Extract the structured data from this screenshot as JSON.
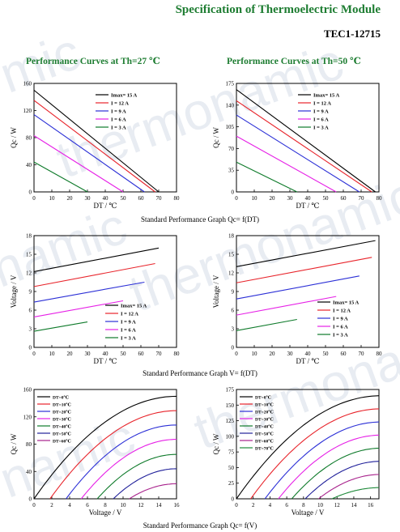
{
  "header": {
    "title": "Specification of Thermoelectric Module",
    "model": "TEC1-12715"
  },
  "section_titles": {
    "left": "Performance Curves at Th=27 ℃",
    "right": "Performance Curves at Th=50 ℃"
  },
  "captions": {
    "qc_dt": "Standard Performance Graph Qc= f(DT)",
    "v_dt": "Standard Performance Graph V= f(DT)",
    "qc_v": "Standard Performance Graph Qc= f(V)"
  },
  "watermark": [
    "mic",
    "thermonamic",
    "namic",
    "thermonamic",
    "thermonamic",
    "namic"
  ],
  "chart_data": [
    {
      "id": "qc_dt_27",
      "type": "line",
      "xlabel": "DT / ℃",
      "ylabel": "Qc / W",
      "xlim": [
        0,
        80
      ],
      "ylim": [
        0,
        160
      ],
      "xticks": [
        0,
        10,
        20,
        30,
        40,
        50,
        60,
        70,
        80
      ],
      "yticks": [
        0,
        40,
        80,
        120,
        160
      ],
      "legend_position": "top-right",
      "series": [
        {
          "name": "Imax= 15 A",
          "color": "#000000",
          "x": [
            0,
            70
          ],
          "y": [
            150,
            0
          ]
        },
        {
          "name": "I = 12 A",
          "color": "#e8232a",
          "x": [
            0,
            68
          ],
          "y": [
            135,
            0
          ]
        },
        {
          "name": "I = 9 A",
          "color": "#2b2fd6",
          "x": [
            0,
            62
          ],
          "y": [
            114,
            0
          ]
        },
        {
          "name": "I = 6 A",
          "color": "#e620e6",
          "x": [
            0,
            50
          ],
          "y": [
            83,
            0
          ]
        },
        {
          "name": "I = 3 A",
          "color": "#0e7a2a",
          "x": [
            0,
            30
          ],
          "y": [
            44,
            0
          ]
        }
      ]
    },
    {
      "id": "qc_dt_50",
      "type": "line",
      "xlabel": "DT / ℃",
      "ylabel": "Qc / W",
      "xlim": [
        0,
        80
      ],
      "ylim": [
        0,
        175
      ],
      "xticks": [
        0,
        10,
        20,
        30,
        40,
        50,
        60,
        70,
        80
      ],
      "yticks": [
        0,
        35,
        70,
        105,
        140,
        175
      ],
      "legend_position": "top-right",
      "series": [
        {
          "name": "Imax= 15 A",
          "color": "#000000",
          "x": [
            0,
            78
          ],
          "y": [
            165,
            0
          ]
        },
        {
          "name": "I = 12 A",
          "color": "#e8232a",
          "x": [
            0,
            76
          ],
          "y": [
            147,
            0
          ]
        },
        {
          "name": "I = 9 A",
          "color": "#2b2fd6",
          "x": [
            0,
            69
          ],
          "y": [
            124,
            0
          ]
        },
        {
          "name": "I = 6 A",
          "color": "#e620e6",
          "x": [
            0,
            56
          ],
          "y": [
            90,
            0
          ]
        },
        {
          "name": "I = 3 A",
          "color": "#0e7a2a",
          "x": [
            0,
            34
          ],
          "y": [
            48,
            0
          ]
        }
      ]
    },
    {
      "id": "v_dt_27",
      "type": "line",
      "xlabel": "DT / ℃",
      "ylabel": "Voltage / V",
      "xlim": [
        0,
        80
      ],
      "ylim": [
        0,
        18
      ],
      "xticks": [
        0,
        10,
        20,
        30,
        40,
        50,
        60,
        70,
        80
      ],
      "yticks": [
        0,
        3,
        6,
        9,
        12,
        15,
        18
      ],
      "legend_position": "lower-center",
      "series": [
        {
          "name": "Imax= 15 A",
          "color": "#000000",
          "x": [
            0,
            70
          ],
          "y": [
            12.2,
            16.0
          ]
        },
        {
          "name": "I = 12 A",
          "color": "#e8232a",
          "x": [
            0,
            68
          ],
          "y": [
            9.8,
            13.5
          ]
        },
        {
          "name": "I = 9 A",
          "color": "#2b2fd6",
          "x": [
            0,
            62
          ],
          "y": [
            7.3,
            10.5
          ]
        },
        {
          "name": "I = 6 A",
          "color": "#e620e6",
          "x": [
            0,
            50
          ],
          "y": [
            4.9,
            7.5
          ]
        },
        {
          "name": "I = 3 A",
          "color": "#0e7a2a",
          "x": [
            0,
            30
          ],
          "y": [
            2.6,
            4.1
          ]
        }
      ]
    },
    {
      "id": "v_dt_50",
      "type": "line",
      "xlabel": "DT / ℃",
      "ylabel": "Voltage / V",
      "xlim": [
        0,
        80
      ],
      "ylim": [
        0,
        18
      ],
      "xticks": [
        0,
        10,
        20,
        30,
        40,
        50,
        60,
        70,
        80
      ],
      "yticks": [
        0,
        3,
        6,
        9,
        12,
        15,
        18
      ],
      "legend_position": "lower-right",
      "series": [
        {
          "name": "Imax= 15 A",
          "color": "#000000",
          "x": [
            0,
            78
          ],
          "y": [
            13.0,
            17.2
          ]
        },
        {
          "name": "I = 12 A",
          "color": "#e8232a",
          "x": [
            0,
            76
          ],
          "y": [
            10.4,
            14.5
          ]
        },
        {
          "name": "I = 9 A",
          "color": "#2b2fd6",
          "x": [
            0,
            69
          ],
          "y": [
            7.8,
            11.5
          ]
        },
        {
          "name": "I = 6 A",
          "color": "#e620e6",
          "x": [
            0,
            56
          ],
          "y": [
            5.2,
            8.2
          ]
        },
        {
          "name": "I = 3 A",
          "color": "#0e7a2a",
          "x": [
            0,
            34
          ],
          "y": [
            2.7,
            4.5
          ]
        }
      ]
    },
    {
      "id": "qc_v_27",
      "type": "line",
      "xlabel": "Voltage / V",
      "ylabel": "Qc / W",
      "xlim": [
        0,
        16
      ],
      "ylim": [
        0,
        160
      ],
      "xticks": [
        0,
        2,
        4,
        6,
        8,
        10,
        12,
        14,
        16
      ],
      "yticks": [
        0,
        40,
        80,
        120,
        160
      ],
      "legend_position": "top-left",
      "series": [
        {
          "name": "DT=0℃",
          "color": "#000000",
          "v0": 0.0,
          "vmax": 16.0,
          "qmax": 150
        },
        {
          "name": "DT=10℃",
          "color": "#e8232a",
          "v0": 1.8,
          "vmax": 16.0,
          "qmax": 129
        },
        {
          "name": "DT=20℃",
          "color": "#2b2fd6",
          "v0": 3.6,
          "vmax": 16.0,
          "qmax": 108
        },
        {
          "name": "DT=30℃",
          "color": "#e620e6",
          "v0": 5.3,
          "vmax": 16.0,
          "qmax": 87
        },
        {
          "name": "DT=40℃",
          "color": "#0e7a2a",
          "v0": 7.1,
          "vmax": 16.0,
          "qmax": 65
        },
        {
          "name": "DT=50℃",
          "color": "#20209a",
          "v0": 8.9,
          "vmax": 16.0,
          "qmax": 44
        },
        {
          "name": "DT=60℃",
          "color": "#a8228c",
          "v0": 10.7,
          "vmax": 16.0,
          "qmax": 22
        }
      ]
    },
    {
      "id": "qc_v_50",
      "type": "line",
      "xlabel": "Voltage / V",
      "ylabel": "Qc / W",
      "xlim": [
        0,
        17
      ],
      "ylim": [
        0,
        175
      ],
      "xticks": [
        0,
        2,
        4,
        6,
        8,
        10,
        12,
        14,
        16
      ],
      "yticks": [
        0,
        25,
        50,
        75,
        100,
        125,
        150,
        175
      ],
      "legend_position": "top-left",
      "series": [
        {
          "name": "DT=0℃",
          "color": "#000000",
          "v0": 0.0,
          "vmax": 17.2,
          "qmax": 165
        },
        {
          "name": "DT=10℃",
          "color": "#e8232a",
          "v0": 1.7,
          "vmax": 17.2,
          "qmax": 144
        },
        {
          "name": "DT=20℃",
          "color": "#2b2fd6",
          "v0": 3.4,
          "vmax": 17.2,
          "qmax": 123
        },
        {
          "name": "DT=30℃",
          "color": "#e620e6",
          "v0": 5.0,
          "vmax": 17.2,
          "qmax": 102
        },
        {
          "name": "DT=40℃",
          "color": "#0e7a2a",
          "v0": 6.6,
          "vmax": 17.2,
          "qmax": 81
        },
        {
          "name": "DT=50℃",
          "color": "#20209a",
          "v0": 8.2,
          "vmax": 17.2,
          "qmax": 60
        },
        {
          "name": "DT=60℃",
          "color": "#a8228c",
          "v0": 9.8,
          "vmax": 17.2,
          "qmax": 39
        },
        {
          "name": "DT=70℃",
          "color": "#1f8a3a",
          "v0": 11.4,
          "vmax": 17.2,
          "qmax": 18
        }
      ]
    }
  ]
}
